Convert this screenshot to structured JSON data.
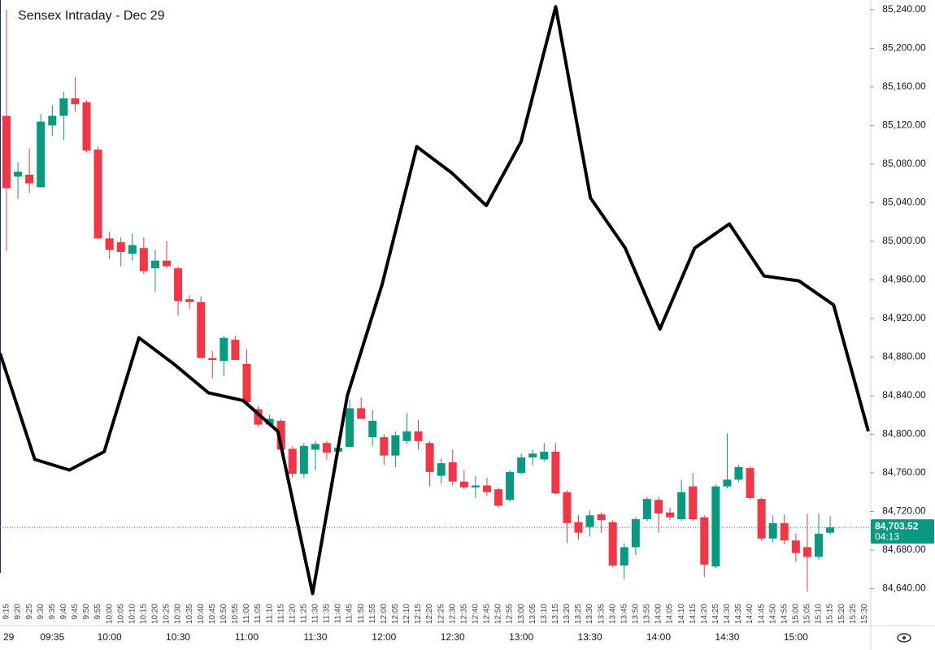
{
  "chart_data": {
    "type": "candlestick",
    "title": "Sensex Intraday - Dec 29",
    "categories": [
      "9:15",
      "9:20",
      "9:25",
      "9:30",
      "9:35",
      "9:40",
      "9:45",
      "9:50",
      "9:55",
      "10:00",
      "10:05",
      "10:10",
      "10:15",
      "10:20",
      "10:25",
      "10:30",
      "10:35",
      "10:40",
      "10:45",
      "10:50",
      "10:55",
      "11:00",
      "11:05",
      "11:10",
      "11:15",
      "11:20",
      "11:25",
      "11:30",
      "11:35",
      "11:40",
      "11:45",
      "11:50",
      "11:55",
      "12:00",
      "12:05",
      "12:10",
      "12:15",
      "12:20",
      "12:25",
      "12:30",
      "12:35",
      "12:40",
      "12:45",
      "12:50",
      "12:55",
      "13:00",
      "13:05",
      "13:10",
      "13:15",
      "13:20",
      "13:25",
      "13:30",
      "13:35",
      "13:40",
      "13:45",
      "13:50",
      "13:55",
      "14:00",
      "14:05",
      "14:10",
      "14:15",
      "14:20",
      "14:25",
      "14:30",
      "14:35",
      "14:40",
      "14:45",
      "14:50",
      "14:55",
      "15:00",
      "15:05",
      "15:10",
      "15:15",
      "15:20",
      "15:25",
      "15:30"
    ],
    "open": [
      85130,
      85067,
      85069,
      85056,
      85120,
      85130,
      85148,
      85144,
      85095,
      85003,
      84999,
      84987,
      84993,
      84972,
      84980,
      84972,
      84940,
      84937,
      84879,
      84876,
      84898,
      84873,
      84826,
      84810,
      84814,
      84785,
      84759,
      84784,
      84791,
      84782,
      84787,
      84827,
      84797,
      84797,
      84778,
      84793,
      84803,
      84791,
      84757,
      84771,
      84751,
      84745,
      84747,
      84743,
      84732,
      84760,
      84776,
      84774,
      84782,
      84740,
      84709,
      84704,
      84717,
      84709,
      84664,
      84683,
      84712,
      84732,
      84719,
      84712,
      84746,
      84714,
      84663,
      84746,
      84753,
      84765,
      84733,
      84692,
      84708,
      84690,
      84683,
      84673,
      84698,
      null,
      null,
      null
    ],
    "high": [
      85240,
      85082,
      85096,
      85132,
      85141,
      85155,
      85170,
      85146,
      85098,
      85010,
      85004,
      85008,
      85004,
      84991,
      85000,
      84974,
      84944,
      84943,
      84886,
      84902,
      84902,
      84888,
      84829,
      84820,
      84816,
      84788,
      84791,
      84793,
      84793,
      84790,
      84836,
      84838,
      84825,
      84800,
      84803,
      84822,
      84815,
      84793,
      84775,
      84784,
      84763,
      84757,
      84755,
      84745,
      84763,
      84780,
      84784,
      84791,
      84791,
      84742,
      84716,
      84721,
      84719,
      84711,
      84687,
      84714,
      84735,
      84735,
      84724,
      84753,
      84760,
      84716,
      84748,
      84801,
      84768,
      84767,
      84734,
      84716,
      84717,
      84697,
      84718,
      84718,
      84715,
      null,
      null,
      null
    ],
    "low": [
      84990,
      85044,
      85050,
      85056,
      85109,
      85105,
      85134,
      85092,
      85002,
      84982,
      84974,
      84980,
      84966,
      84947,
      84972,
      84923,
      84930,
      84879,
      84858,
      84860,
      84877,
      84829,
      84808,
      84808,
      84782,
      84755,
      84755,
      84763,
      84774,
      84778,
      84787,
      84816,
      84788,
      84768,
      84766,
      84790,
      84784,
      84746,
      84749,
      84747,
      84743,
      84734,
      84736,
      84724,
      84730,
      84758,
      84768,
      84772,
      84738,
      84687,
      84691,
      84694,
      84698,
      84662,
      84650,
      84675,
      84710,
      84698,
      84711,
      84710,
      84710,
      84652,
      84661,
      84744,
      84751,
      84732,
      84690,
      84688,
      84686,
      84668,
      84637,
      84670,
      84696,
      null,
      null,
      null
    ],
    "close": [
      85055,
      85072,
      85060,
      85124,
      85130,
      85148,
      85142,
      85094,
      85003,
      84991,
      84989,
      84996,
      84969,
      84980,
      84974,
      84938,
      84937,
      84879,
      84877,
      84900,
      84877,
      84833,
      84810,
      84816,
      84784,
      84759,
      84788,
      84790,
      84781,
      84786,
      84827,
      84816,
      84814,
      84778,
      84799,
      84803,
      84793,
      84761,
      84770,
      84751,
      84745,
      84747,
      84740,
      84726,
      84761,
      84776,
      84780,
      84782,
      84739,
      84708,
      84698,
      84716,
      84711,
      84664,
      84683,
      84712,
      84733,
      84718,
      84714,
      84740,
      84712,
      84665,
      84746,
      84753,
      84766,
      84734,
      84692,
      84708,
      84690,
      84677,
      84673,
      84697,
      84703.52,
      null,
      null,
      null
    ],
    "up_color": "#089981",
    "down_color": "#f23645",
    "line_values": [
      84884,
      84774,
      84763,
      84782,
      84900,
      84873,
      84843,
      84835,
      84803,
      84635,
      84840,
      84955,
      85098,
      85071,
      85037,
      85103,
      85243,
      85045,
      84993,
      84909,
      84993,
      85018,
      84964,
      84959,
      84934,
      84803
    ],
    "line_color": "#000000",
    "ylim": [
      84627,
      85250
    ],
    "yticks": [
      {
        "value": 84640,
        "label": "84,640.00"
      },
      {
        "value": 84680,
        "label": "84,680.00"
      },
      {
        "value": 84720,
        "label": "84,720.00"
      },
      {
        "value": 84760,
        "label": "84,760.00"
      },
      {
        "value": 84800,
        "label": "84,800.00"
      },
      {
        "value": 84840,
        "label": "84,840.00"
      },
      {
        "value": 84880,
        "label": "84,880.00"
      },
      {
        "value": 84920,
        "label": "84,920.00"
      },
      {
        "value": 84960,
        "label": "84,960.00"
      },
      {
        "value": 85000,
        "label": "85,000.00"
      },
      {
        "value": 85040,
        "label": "85,040.00"
      },
      {
        "value": 85080,
        "label": "85,080.00"
      },
      {
        "value": 85120,
        "label": "85,120.00"
      },
      {
        "value": 85160,
        "label": "85,160.00"
      },
      {
        "value": 85200,
        "label": "85,200.00"
      },
      {
        "value": 85240,
        "label": "85,240.00"
      }
    ],
    "time_labels": [
      "29",
      "09:35",
      "10:00",
      "10:30",
      "11:00",
      "11:30",
      "12:00",
      "12:30",
      "13:00",
      "13:30",
      "14:00",
      "14:30",
      "15:00"
    ],
    "last_price": {
      "value": 84703.52,
      "label": "84,703.52"
    },
    "countdown": "04:13"
  }
}
